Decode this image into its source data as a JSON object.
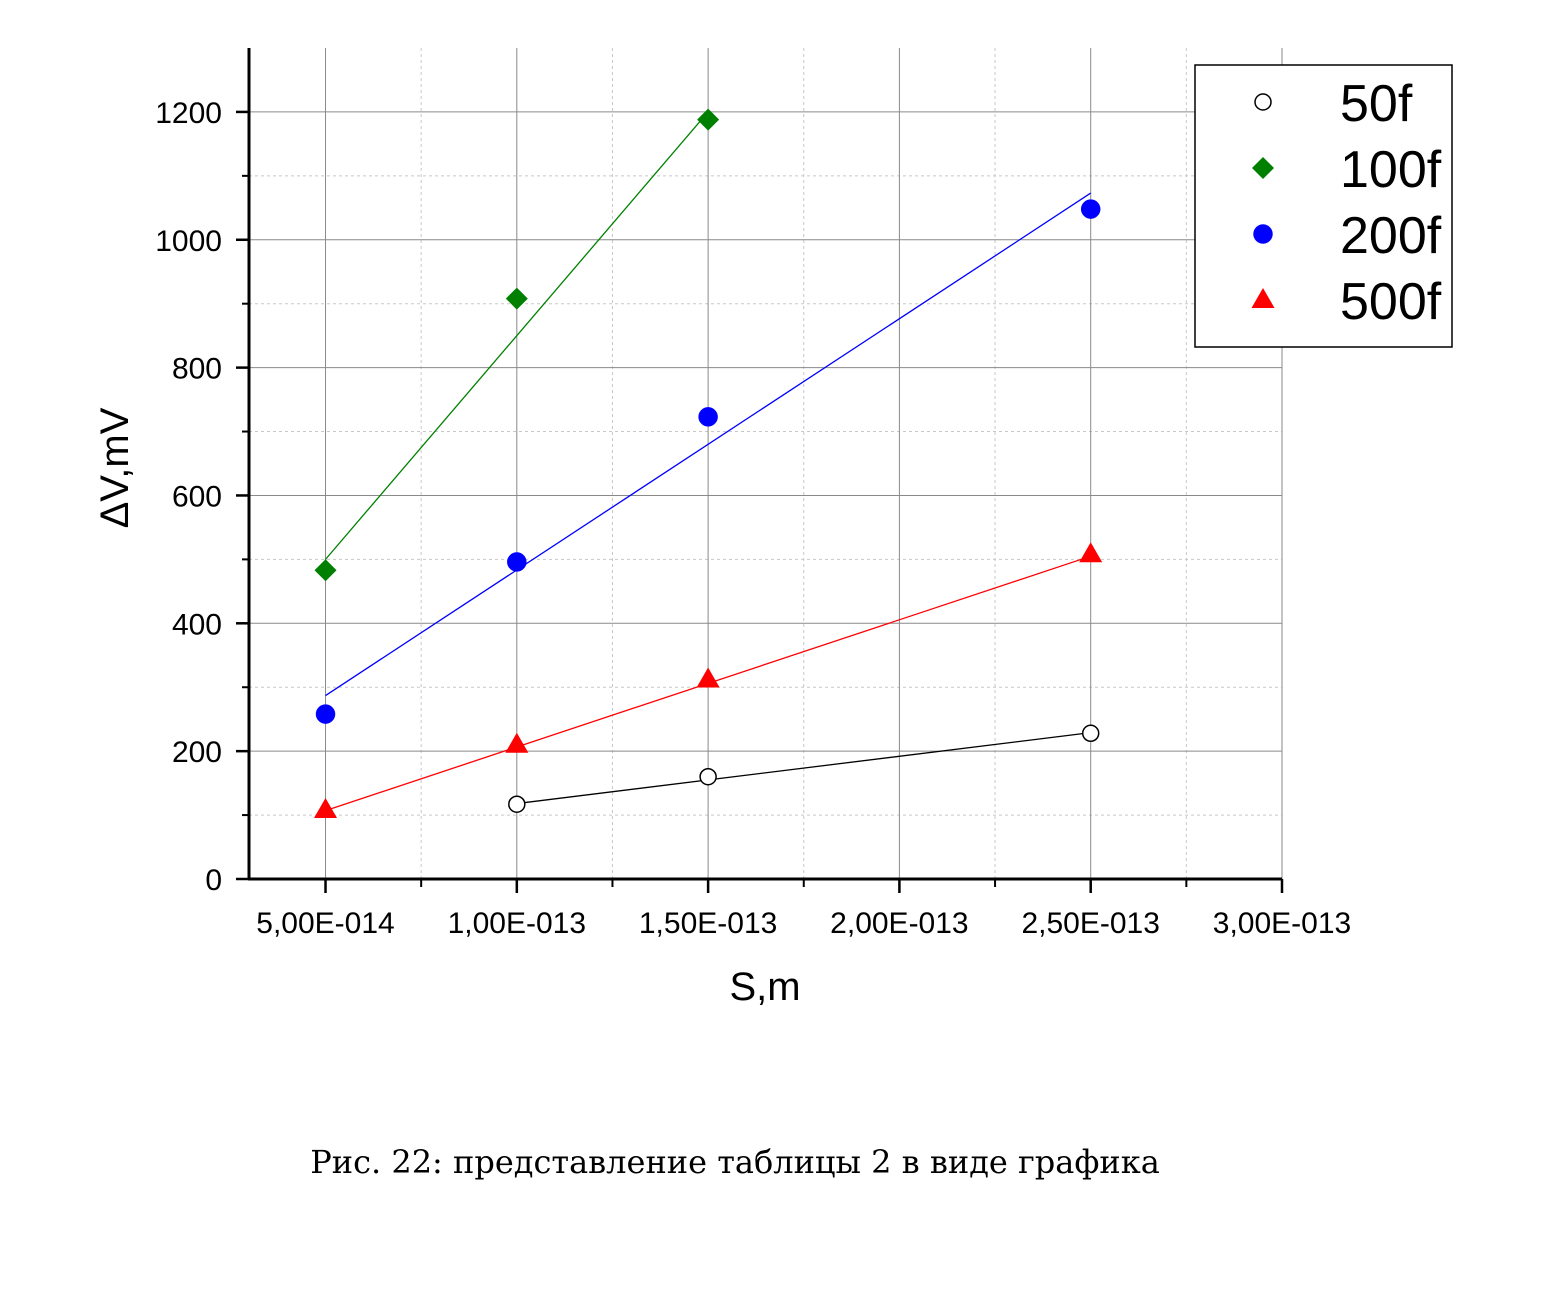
{
  "chart_data": {
    "type": "scatter",
    "xlabel": "S,m",
    "ylabel": "ΔV,mV",
    "xlim": [
      3e-14,
      3e-13
    ],
    "ylim": [
      0,
      1300
    ],
    "xticks": [
      5e-14,
      1e-13,
      1.5e-13,
      2e-13,
      2.5e-13,
      3e-13
    ],
    "xtick_labels": [
      "5,00E-014",
      "1,00E-013",
      "1,50E-013",
      "2,00E-013",
      "2,50E-013",
      "3,00E-013"
    ],
    "yticks": [
      0,
      200,
      400,
      600,
      800,
      1000,
      1200
    ],
    "ytick_labels": [
      "0",
      "200",
      "400",
      "600",
      "800",
      "1000",
      "1200"
    ],
    "grid": true,
    "legend_position": "top-right",
    "series": [
      {
        "name": "50f",
        "marker": "open-circle",
        "color": "#000000",
        "x": [
          1e-13,
          1.5e-13,
          2.5e-13
        ],
        "y": [
          117,
          160,
          228
        ],
        "fit": {
          "x": [
            1e-13,
            2.5e-13
          ],
          "y": [
            118,
            229
          ]
        }
      },
      {
        "name": "100f",
        "marker": "diamond",
        "color": "#008000",
        "x": [
          5e-14,
          1e-13,
          1.5e-13
        ],
        "y": [
          483,
          908,
          1188
        ],
        "fit": {
          "x": [
            5e-14,
            1.5e-13
          ],
          "y": [
            500,
            1200
          ]
        }
      },
      {
        "name": "200f",
        "marker": "circle",
        "color": "#0000ff",
        "x": [
          5e-14,
          1e-13,
          1.5e-13,
          2.5e-13
        ],
        "y": [
          258,
          496,
          723,
          1048
        ],
        "fit": {
          "x": [
            5e-14,
            2.5e-13
          ],
          "y": [
            287,
            1073
          ]
        }
      },
      {
        "name": "500f",
        "marker": "triangle",
        "color": "#ff0000",
        "x": [
          5e-14,
          1e-13,
          1.5e-13,
          2.5e-13
        ],
        "y": [
          108,
          210,
          312,
          508
        ],
        "fit": {
          "x": [
            5e-14,
            2.5e-13
          ],
          "y": [
            107,
            505
          ]
        }
      }
    ]
  },
  "caption": "Рис. 22: представление таблицы 2 в виде графика"
}
